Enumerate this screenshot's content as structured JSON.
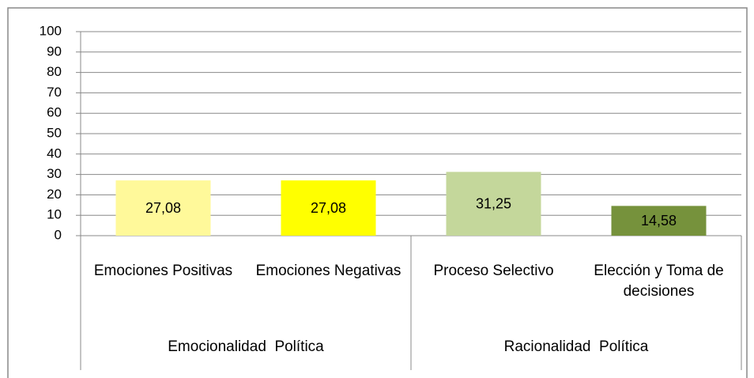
{
  "chart_data": {
    "type": "bar",
    "categories": [
      "Emociones Positivas",
      "Emociones Negativas",
      "Proceso Selectivo",
      "Elección y Toma de decisiones"
    ],
    "values": [
      27.08,
      27.08,
      31.25,
      14.58
    ],
    "value_labels": [
      "27,08",
      "27,08",
      "31,25",
      "14,58"
    ],
    "colors": [
      "#fff99a",
      "#ffff00",
      "#c4d79b",
      "#76923c"
    ],
    "groups": [
      "Emocionalidad  Política",
      "Racionalidad  Política"
    ],
    "ylim": [
      0,
      100
    ],
    "yticks": [
      0,
      10,
      20,
      30,
      40,
      50,
      60,
      70,
      80,
      90,
      100
    ],
    "grid": true
  }
}
